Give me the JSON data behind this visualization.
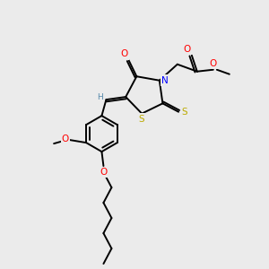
{
  "bg_color": "#ebebeb",
  "bond_color": "#000000",
  "atom_colors": {
    "O": "#ff0000",
    "N": "#0000ff",
    "S": "#bbaa00",
    "C": "#000000",
    "H": "#5588aa"
  },
  "figsize": [
    3.0,
    3.0
  ],
  "dpi": 100,
  "lw": 1.4,
  "fontsize": 7.5
}
